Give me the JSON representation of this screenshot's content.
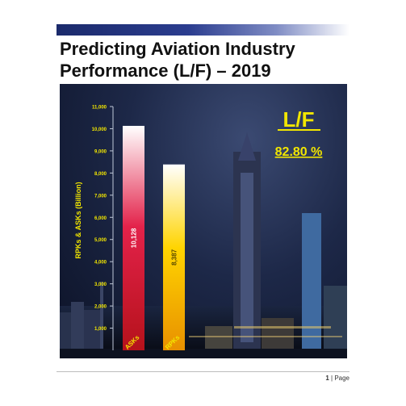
{
  "document": {
    "title_line1": "Predicting Aviation Industry",
    "title_line2": "Performance (L/F) – 2019",
    "page_number": "1",
    "page_separator": "|",
    "page_word": "Page"
  },
  "chart_data": {
    "type": "bar",
    "ylabel": "RPKs & ASKs (Billion)",
    "ylim": [
      0,
      11000
    ],
    "yticks": [
      "1,000",
      "2,000",
      "3,000",
      "4,000",
      "5,000",
      "6,000",
      "7,000",
      "8,000",
      "9,000",
      "10,000",
      "11,000"
    ],
    "categories": [
      "ASKs",
      "RPKs"
    ],
    "values": [
      10128,
      8387
    ],
    "value_labels": [
      "10,128",
      "8,387"
    ],
    "bar_colors": [
      "#e3224a",
      "#ffd400"
    ],
    "annotation_label": "L/F",
    "annotation_value": "82.80 %",
    "annotation_color": "#f2e600",
    "grid": false
  }
}
